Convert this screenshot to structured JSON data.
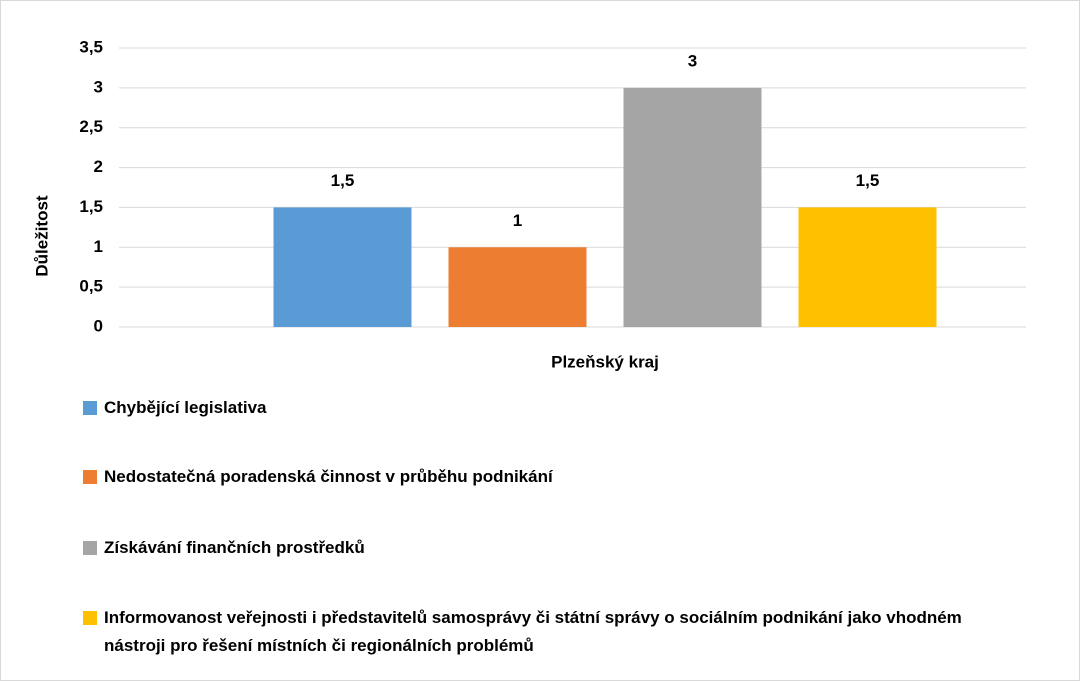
{
  "chart_data": {
    "type": "bar",
    "categories": [
      "Plzeňský kraj"
    ],
    "y_label": "Důležitost",
    "series": [
      {
        "name": "Chybějící legislativa",
        "color": "#5b9bd5",
        "values": [
          1.5
        ],
        "value_labels": [
          "1,5"
        ]
      },
      {
        "name": "Nedostatečná poradenská činnost v průběhu podnikání",
        "color": "#ed7d31",
        "values": [
          1
        ],
        "value_labels": [
          "1"
        ]
      },
      {
        "name": "Získávání finančních prostředků",
        "color": "#a5a5a5",
        "values": [
          3
        ],
        "value_labels": [
          "3"
        ]
      },
      {
        "name": "Informovanost veřejnosti i představitelů samosprávy či státní správy o sociálním podnikání jako vhodném nástroji pro řešení místních či regionálních problémů",
        "color": "#ffc000",
        "values": [
          1.5
        ],
        "value_labels": [
          "1,5"
        ]
      }
    ],
    "ylim": [
      0,
      3.5
    ],
    "yticks": [
      0,
      {
        "value": 0.5,
        "label": "0,5"
      },
      1,
      {
        "value": 1.5,
        "label": "1,5"
      },
      2,
      {
        "value": 2.5,
        "label": "2,5"
      },
      3,
      {
        "value": 3.5,
        "label": "3,5"
      }
    ],
    "grid": true,
    "legend": "bottom"
  }
}
